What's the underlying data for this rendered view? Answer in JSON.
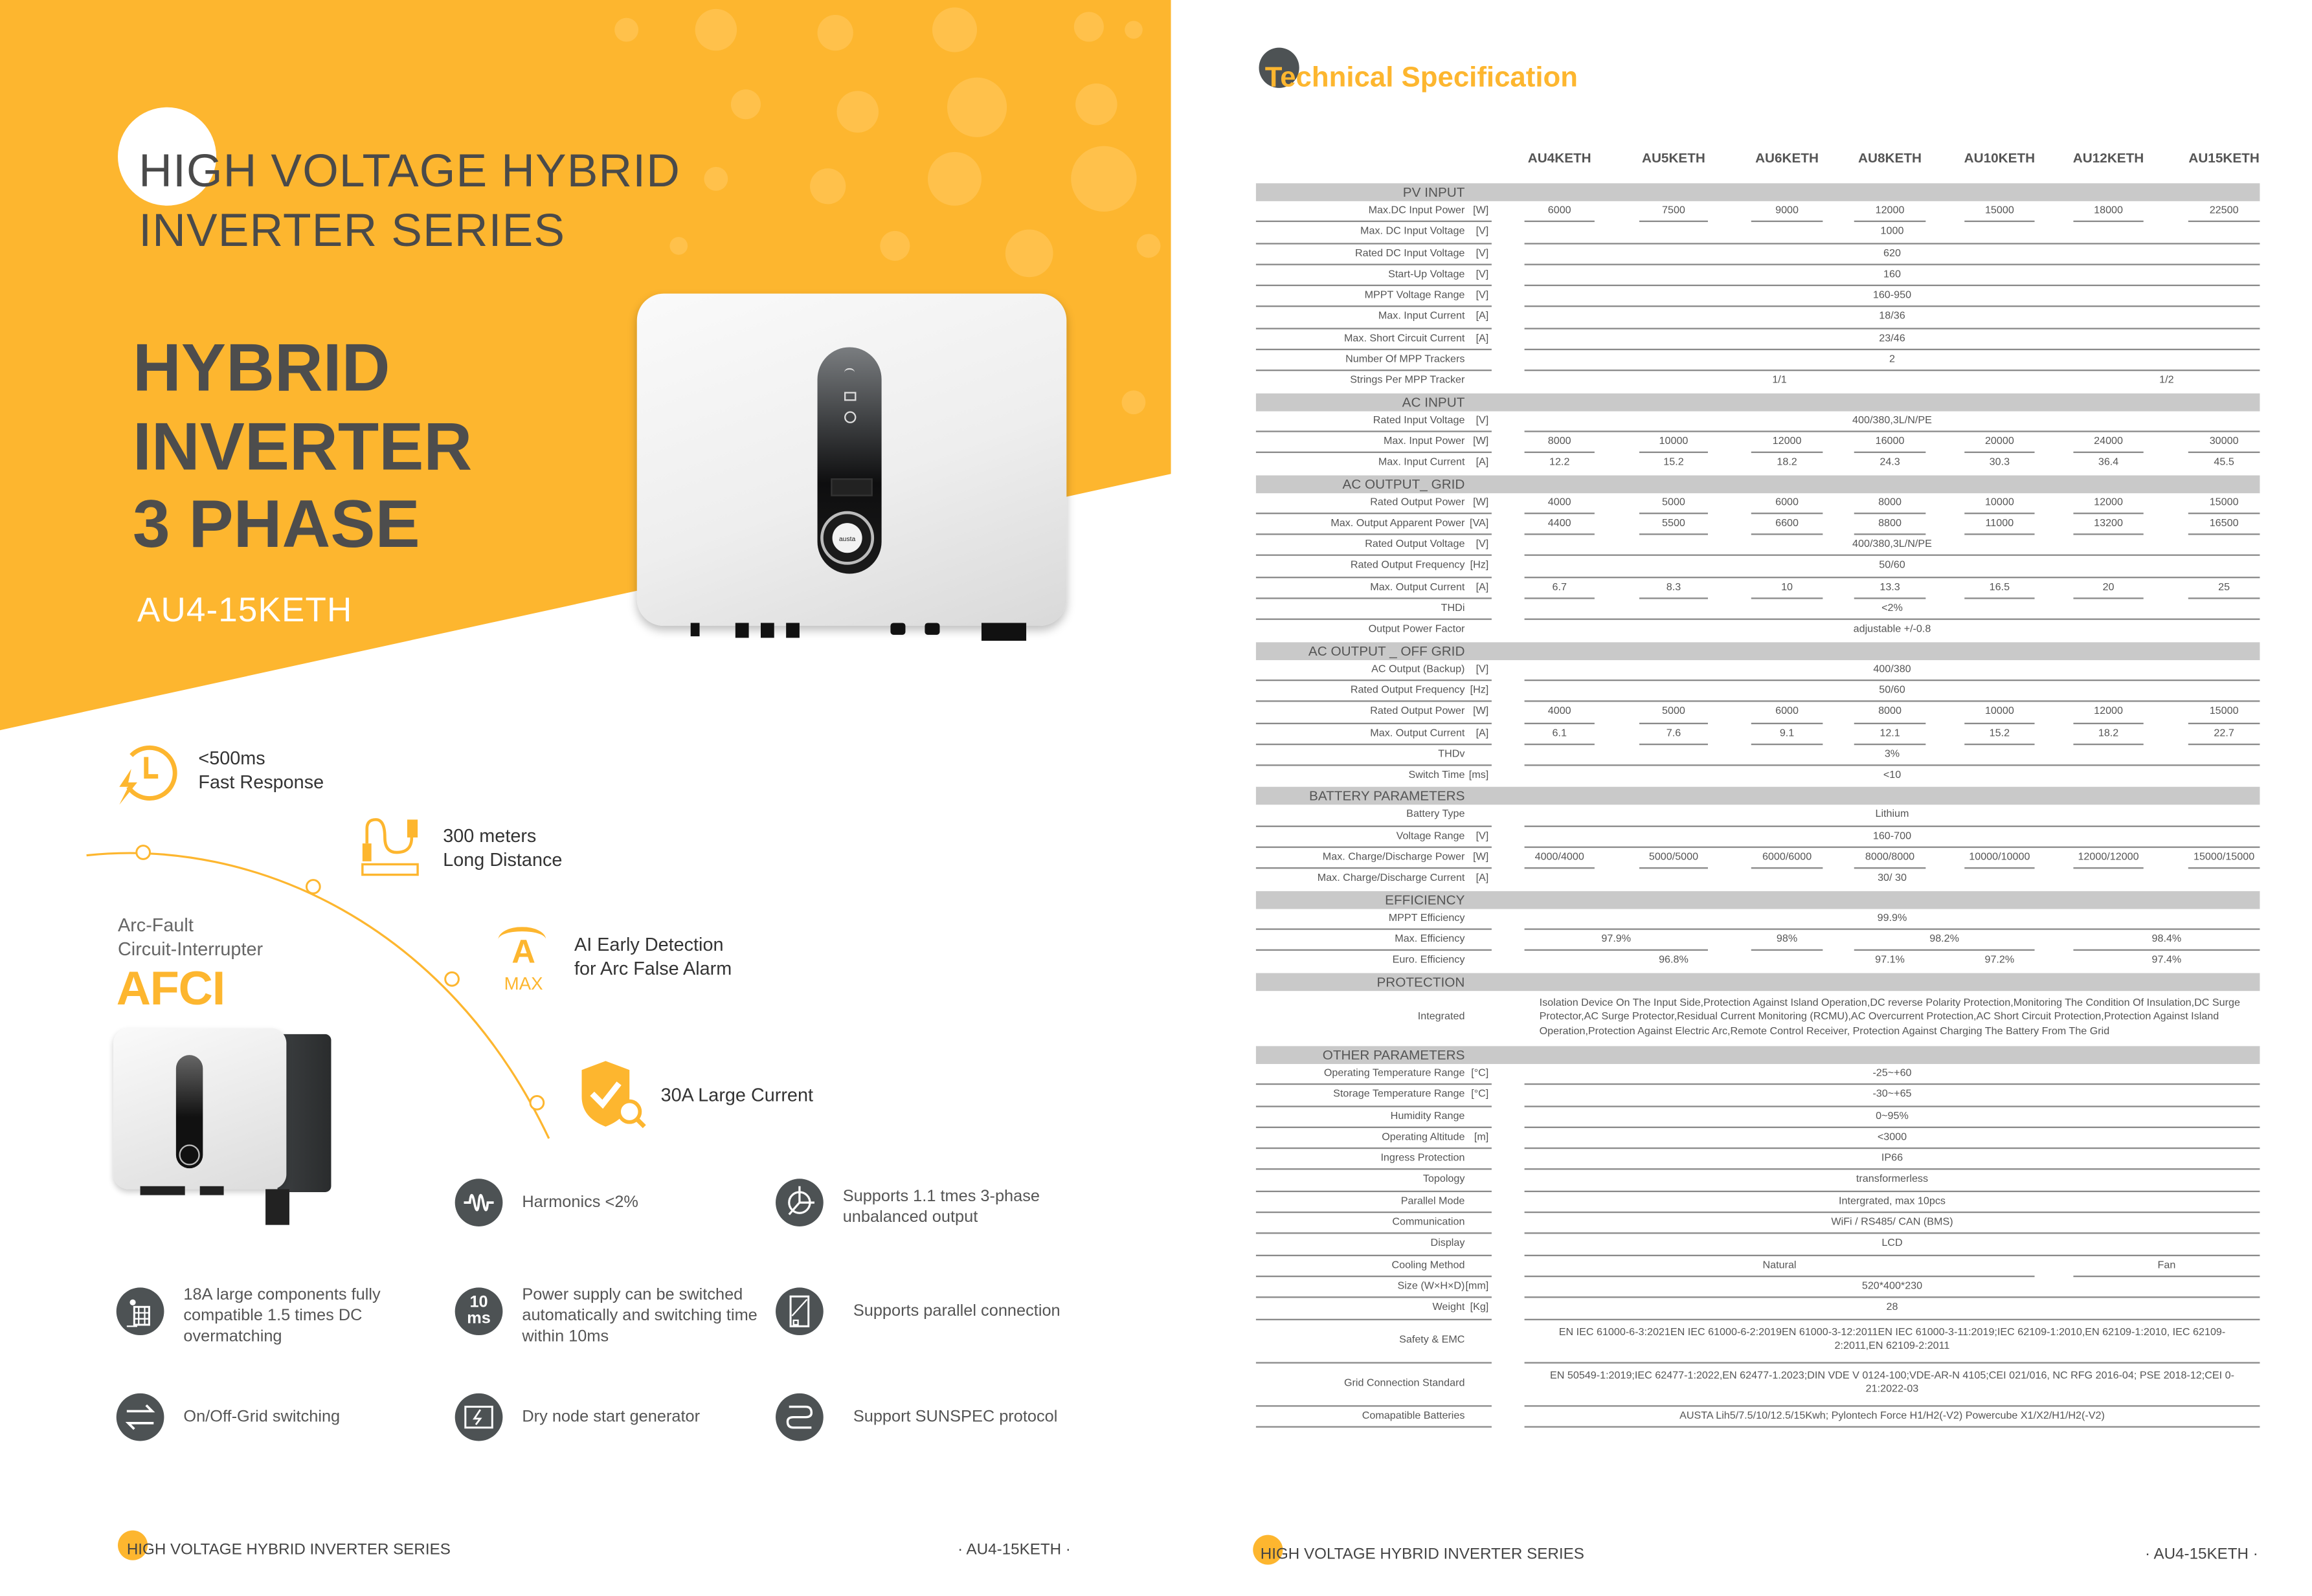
{
  "colors": {
    "brand_orange": "#FDB62F",
    "light_orange": "#FFC453",
    "icon_dark": "#4d5254",
    "text_gray": "#4a4a4a"
  },
  "left": {
    "hero": {
      "line1": "HIGH VOLTAGE HYBRID",
      "line2": "INVERTER SERIES",
      "title_lines": [
        "HYBRID",
        "INVERTER",
        "3 PHASE"
      ],
      "model": "AU4-15KETH",
      "logo": "austa"
    },
    "features_top": [
      {
        "icon": "clock-lightning-icon",
        "line1": "<500ms",
        "line2": "Fast Response"
      },
      {
        "icon": "cable-ruler-icon",
        "line1": "300 meters",
        "line2": "Long Distance"
      },
      {
        "icon": "ampere-max-icon",
        "icon_text": "A",
        "icon_sub": "MAX",
        "line1": "AI Early Detection",
        "line2": "for Arc False Alarm"
      },
      {
        "icon": "shield-check-icon",
        "line1": "30A Large Current"
      }
    ],
    "afci": {
      "line1": "Arc-Fault",
      "line2": "Circuit-Interrupter",
      "big": "AFCI"
    },
    "features_grid": [
      {
        "icon": "waveform-icon",
        "text": "Harmonics <2%"
      },
      {
        "icon": "three-phase-icon",
        "text": "Supports 1.1 tmes 3-phase unbalanced output"
      },
      {
        "icon": "solar-panel-icon",
        "text": "18A large components fully compatible 1.5 times DC overmatching"
      },
      {
        "icon": "timer-10ms-icon",
        "icon_text": "10",
        "icon_sub": "ms",
        "text": "Power supply can be switched automatically and switching time within 10ms"
      },
      {
        "icon": "parallel-inverter-icon",
        "text": "Supports parallel connection"
      },
      {
        "icon": "switch-arrows-icon",
        "text": "On/Off-Grid switching"
      },
      {
        "icon": "generator-icon",
        "text": "Dry node start generator"
      },
      {
        "icon": "protocol-icon",
        "text": "Support SUNSPEC protocol"
      }
    ],
    "footer": {
      "title": "HIGH VOLTAGE HYBRID INVERTER SERIES",
      "model": "· AU4-15KETH ·"
    }
  },
  "right": {
    "title": "Technical Specification",
    "models": [
      "AU4KETH",
      "AU5KETH",
      "AU6KETH",
      "AU8KETH",
      "AU10KETH",
      "AU12KETH",
      "AU15KETH"
    ],
    "sections": [
      {
        "title": "PV INPUT",
        "rows": [
          {
            "label": "Max.DC Input Power",
            "unit": "[W]",
            "cells": [
              {
                "v": "6000"
              },
              {
                "v": "7500"
              },
              {
                "v": "9000"
              },
              {
                "v": "12000"
              },
              {
                "v": "15000"
              },
              {
                "v": "18000"
              },
              {
                "v": "22500"
              }
            ]
          },
          {
            "label": "Max. DC Input Voltage",
            "unit": "[V]",
            "cells": [
              {
                "v": "1000",
                "span": 7
              }
            ]
          },
          {
            "label": "Rated DC Input Voltage",
            "unit": "[V]",
            "cells": [
              {
                "v": "620",
                "span": 7
              }
            ]
          },
          {
            "label": "Start-Up Voltage",
            "unit": "[V]",
            "cells": [
              {
                "v": "160",
                "span": 7
              }
            ]
          },
          {
            "label": "MPPT Voltage Range",
            "unit": "[V]",
            "cells": [
              {
                "v": "160-950",
                "span": 7
              }
            ]
          },
          {
            "label": "Max. Input Current",
            "unit": "[A]",
            "cells": [
              {
                "v": "18/36",
                "span": 7
              }
            ]
          },
          {
            "label": "Max. Short Circuit Current",
            "unit": "[A]",
            "cells": [
              {
                "v": "23/46",
                "span": 7
              }
            ]
          },
          {
            "label": "Number Of MPP Trackers",
            "unit": "",
            "cells": [
              {
                "v": "2",
                "span": 7
              }
            ]
          },
          {
            "label": "Strings Per MPP Tracker",
            "unit": "",
            "cells": [
              {
                "v": "1/1",
                "span": 5
              },
              {
                "v": "1/2",
                "span": 2
              }
            ]
          }
        ]
      },
      {
        "title": "AC INPUT",
        "rows": [
          {
            "label": "Rated Input Voltage",
            "unit": "[V]",
            "cells": [
              {
                "v": "400/380,3L/N/PE",
                "span": 7
              }
            ]
          },
          {
            "label": "Max. Input Power",
            "unit": "[W]",
            "cells": [
              {
                "v": "8000"
              },
              {
                "v": "10000"
              },
              {
                "v": "12000"
              },
              {
                "v": "16000"
              },
              {
                "v": "20000"
              },
              {
                "v": "24000"
              },
              {
                "v": "30000"
              }
            ]
          },
          {
            "label": "Max. Input Current",
            "unit": "[A]",
            "cells": [
              {
                "v": "12.2"
              },
              {
                "v": "15.2"
              },
              {
                "v": "18.2"
              },
              {
                "v": "24.3"
              },
              {
                "v": "30.3"
              },
              {
                "v": "36.4"
              },
              {
                "v": "45.5"
              }
            ]
          }
        ]
      },
      {
        "title": "AC OUTPUT_ GRID",
        "rows": [
          {
            "label": "Rated Output Power",
            "unit": "[W]",
            "cells": [
              {
                "v": "4000"
              },
              {
                "v": "5000"
              },
              {
                "v": "6000"
              },
              {
                "v": "8000"
              },
              {
                "v": "10000"
              },
              {
                "v": "12000"
              },
              {
                "v": "15000"
              }
            ]
          },
          {
            "label": "Max. Output Apparent Power",
            "unit": "[VA]",
            "cells": [
              {
                "v": "4400"
              },
              {
                "v": "5500"
              },
              {
                "v": "6600"
              },
              {
                "v": "8800"
              },
              {
                "v": "11000"
              },
              {
                "v": "13200"
              },
              {
                "v": "16500"
              }
            ]
          },
          {
            "label": "Rated Output Voltage",
            "unit": "[V]",
            "cells": [
              {
                "v": "400/380,3L/N/PE",
                "span": 7
              }
            ]
          },
          {
            "label": "Rated Output Frequency",
            "unit": "[Hz]",
            "cells": [
              {
                "v": "50/60",
                "span": 7
              }
            ]
          },
          {
            "label": "Max. Output Current",
            "unit": "[A]",
            "cells": [
              {
                "v": "6.7"
              },
              {
                "v": "8.3"
              },
              {
                "v": "10"
              },
              {
                "v": "13.3"
              },
              {
                "v": "16.5"
              },
              {
                "v": "20"
              },
              {
                "v": "25"
              }
            ]
          },
          {
            "label": "THDi",
            "unit": "",
            "cells": [
              {
                "v": "<2%",
                "span": 7
              }
            ]
          },
          {
            "label": "Output Power Factor",
            "unit": "",
            "cells": [
              {
                "v": "adjustable +/-0.8",
                "span": 7
              }
            ]
          }
        ]
      },
      {
        "title": "AC OUTPUT _ OFF GRID",
        "rows": [
          {
            "label": "AC Output (Backup)",
            "unit": "[V]",
            "cells": [
              {
                "v": "400/380",
                "span": 7
              }
            ]
          },
          {
            "label": "Rated Output Frequency",
            "unit": "[Hz]",
            "cells": [
              {
                "v": "50/60",
                "span": 7
              }
            ]
          },
          {
            "label": "Rated Output Power",
            "unit": "[W]",
            "cells": [
              {
                "v": "4000"
              },
              {
                "v": "5000"
              },
              {
                "v": "6000"
              },
              {
                "v": "8000"
              },
              {
                "v": "10000"
              },
              {
                "v": "12000"
              },
              {
                "v": "15000"
              }
            ]
          },
          {
            "label": "Max. Output Current",
            "unit": "[A]",
            "cells": [
              {
                "v": "6.1"
              },
              {
                "v": "7.6"
              },
              {
                "v": "9.1"
              },
              {
                "v": "12.1"
              },
              {
                "v": "15.2"
              },
              {
                "v": "18.2"
              },
              {
                "v": "22.7"
              }
            ]
          },
          {
            "label": "THDv",
            "unit": "",
            "cells": [
              {
                "v": "3%",
                "span": 7
              }
            ]
          },
          {
            "label": "Switch Time",
            "unit": "[ms]",
            "cells": [
              {
                "v": "<10",
                "span": 7
              }
            ]
          }
        ]
      },
      {
        "title": "BATTERY PARAMETERS",
        "rows": [
          {
            "label": "Battery Type",
            "unit": "",
            "cells": [
              {
                "v": "Lithium",
                "span": 7
              }
            ]
          },
          {
            "label": "Voltage Range",
            "unit": "[V]",
            "cells": [
              {
                "v": "160-700",
                "span": 7
              }
            ]
          },
          {
            "label": "Max. Charge/Discharge Power",
            "unit": "[W]",
            "cells": [
              {
                "v": "4000/4000"
              },
              {
                "v": "5000/5000"
              },
              {
                "v": "6000/6000"
              },
              {
                "v": "8000/8000"
              },
              {
                "v": "10000/10000"
              },
              {
                "v": "12000/12000"
              },
              {
                "v": "15000/15000"
              }
            ]
          },
          {
            "label": "Max. Charge/Discharge Current",
            "unit": "[A]",
            "cells": [
              {
                "v": "30/ 30",
                "span": 7
              }
            ]
          }
        ]
      },
      {
        "title": "EFFICIENCY",
        "rows": [
          {
            "label": "MPPT Efficiency",
            "unit": "",
            "cells": [
              {
                "v": "99.9%",
                "span": 7
              }
            ]
          },
          {
            "label": "Max. Efficiency",
            "unit": "",
            "cells": [
              {
                "v": "97.9%",
                "span": 2
              },
              {
                "v": "98%"
              },
              {
                "v": "98.2%",
                "span": 2
              },
              {
                "v": "98.4%",
                "span": 2
              }
            ]
          },
          {
            "label": "Euro. Efficiency",
            "unit": "",
            "cells": [
              {
                "v": "96.8%",
                "span": 3
              },
              {
                "v": "97.1%"
              },
              {
                "v": "97.2%"
              },
              {
                "v": "97.4%",
                "span": 2
              }
            ]
          }
        ]
      },
      {
        "title": "PROTECTION",
        "rows": [
          {
            "label": "Integrated",
            "unit": "",
            "multi": true,
            "align": "left",
            "cells": [
              {
                "v": "Isolation Device On The Input Side,Protection Against Island Operation,DC reverse Polarity Protection,Monitoring The Condition Of Insulation,DC Surge Protector,AC Surge Protector,Residual Current Monitoring (RCMU),AC Overcurrent Protection,AC Short Circuit Protection,Protection Against Island Operation,Protection Against Electric Arc,Remote Control Receiver, Protection Against Charging The Battery From The Grid",
                "span": 7
              }
            ]
          }
        ]
      },
      {
        "title": "OTHER PARAMETERS",
        "rows": [
          {
            "label": "Operating Temperature Range",
            "unit": "[°C]",
            "cells": [
              {
                "v": "-25~+60",
                "span": 7
              }
            ]
          },
          {
            "label": "Storage Temperature Range",
            "unit": "[°C]",
            "cells": [
              {
                "v": "-30~+65",
                "span": 7
              }
            ]
          },
          {
            "label": "Humidity Range",
            "unit": "",
            "cells": [
              {
                "v": "0~95%",
                "span": 7
              }
            ]
          },
          {
            "label": "Operating Altitude",
            "unit": "[m]",
            "cells": [
              {
                "v": "<3000",
                "span": 7
              }
            ]
          },
          {
            "label": "Ingress Protection",
            "unit": "",
            "cells": [
              {
                "v": "IP66",
                "span": 7
              }
            ]
          },
          {
            "label": "Topology",
            "unit": "",
            "cells": [
              {
                "v": "transformerless",
                "span": 7
              }
            ]
          },
          {
            "label": "Parallel Mode",
            "unit": "",
            "cells": [
              {
                "v": "Intergrated, max 10pcs",
                "span": 7
              }
            ]
          },
          {
            "label": "Communication",
            "unit": "",
            "cells": [
              {
                "v": "WiFi / RS485/ CAN (BMS)",
                "span": 7
              }
            ]
          },
          {
            "label": "Display",
            "unit": "",
            "cells": [
              {
                "v": "LCD",
                "span": 7
              }
            ]
          },
          {
            "label": "Cooling Method",
            "unit": "",
            "cells": [
              {
                "v": "Natural",
                "span": 5
              },
              {
                "v": "Fan",
                "span": 2
              }
            ]
          },
          {
            "label": "Size (W×H×D)",
            "unit": "[mm]",
            "cells": [
              {
                "v": "520*400*230",
                "span": 7
              }
            ]
          },
          {
            "label": "Weight",
            "unit": "[Kg]",
            "cells": [
              {
                "v": "28",
                "span": 7
              }
            ]
          },
          {
            "label": "Safety & EMC",
            "unit": "",
            "multi": true,
            "cells": [
              {
                "v": "EN IEC 61000-6-3:2021EN IEC 61000-6-2:2019EN 61000-3-12:2011EN IEC 61000-3-11:2019;IEC 62109-1:2010,EN 62109-1:2010, IEC 62109-2:2011,EN 62109-2:2011",
                "span": 7
              }
            ]
          },
          {
            "label": "Grid Connection Standard",
            "unit": "",
            "multi": true,
            "cells": [
              {
                "v": "EN 50549-1:2019;IEC 62477-1:2022,EN 62477-1.2023;DIN VDE V 0124-100;VDE-AR-N 4105;CEI 021/016, NC RFG 2016-04; PSE 2018-12;CEI 0-21:2022-03",
                "span": 7
              }
            ]
          },
          {
            "label": "Comapatible Batteries",
            "unit": "",
            "cells": [
              {
                "v": "AUSTA Lih5/7.5/10/12.5/15Kwh; Pylontech Force H1/H2(-V2) Powercube X1/X2/H1/H2(-V2)",
                "span": 7
              }
            ]
          }
        ]
      }
    ],
    "footer": {
      "title": "HIGH VOLTAGE HYBRID INVERTER SERIES",
      "model": "· AU4-15KETH ·"
    }
  }
}
